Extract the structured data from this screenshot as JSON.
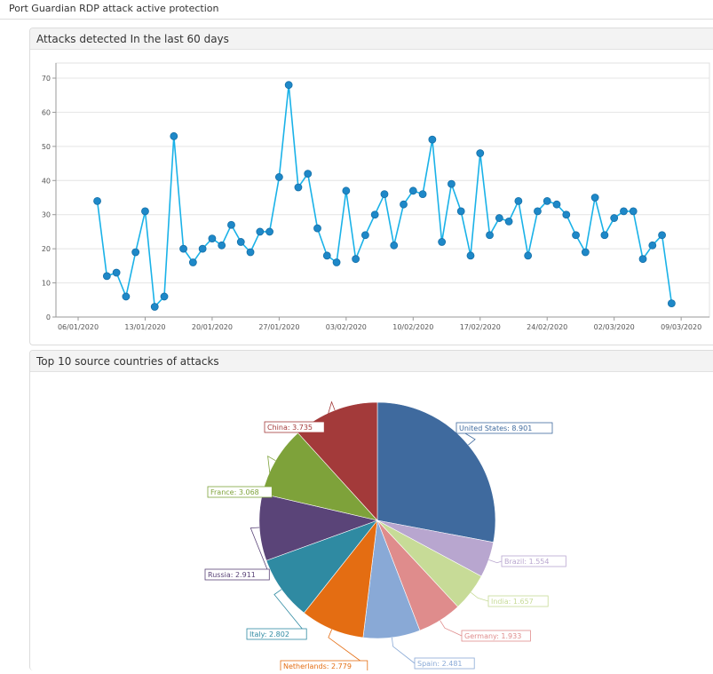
{
  "page": {
    "title": "Port Guardian RDP attack active protection"
  },
  "colors": {
    "line": "#1ab2e8",
    "marker": "#1e88c8",
    "grid": "#e4e4e4",
    "axis": "#999999"
  },
  "line_panel": {
    "title": "Attacks detected In the last 60 days"
  },
  "pie_panel": {
    "title": "Top 10 source countries of attacks"
  },
  "chart_data": [
    {
      "type": "line",
      "title": "",
      "xlabel": "",
      "ylabel": "",
      "ylim": [
        0,
        70
      ],
      "yticks": [
        "0",
        "10",
        "20",
        "30",
        "40",
        "50",
        "60",
        "70"
      ],
      "xtick_labels": [
        "06/01/2020",
        "13/01/2020",
        "20/01/2020",
        "27/01/2020",
        "03/02/2020",
        "10/02/2020",
        "17/02/2020",
        "24/02/2020",
        "02/03/2020",
        "09/03/2020"
      ],
      "grid": true,
      "legend": "none",
      "series": [
        {
          "x": [
            "08/01/2020",
            "09/01/2020",
            "10/01/2020",
            "11/01/2020",
            "12/01/2020",
            "13/01/2020",
            "14/01/2020",
            "15/01/2020",
            "16/01/2020",
            "17/01/2020",
            "18/01/2020",
            "19/01/2020",
            "20/01/2020",
            "21/01/2020",
            "22/01/2020",
            "23/01/2020",
            "24/01/2020",
            "25/01/2020",
            "26/01/2020",
            "27/01/2020",
            "28/01/2020",
            "29/01/2020",
            "30/01/2020",
            "31/01/2020",
            "01/02/2020",
            "02/02/2020",
            "03/02/2020",
            "04/02/2020",
            "05/02/2020",
            "06/02/2020",
            "07/02/2020",
            "08/02/2020",
            "09/02/2020",
            "10/02/2020",
            "11/02/2020",
            "12/02/2020",
            "13/02/2020",
            "14/02/2020",
            "15/02/2020",
            "16/02/2020",
            "17/02/2020",
            "18/02/2020",
            "19/02/2020",
            "20/02/2020",
            "21/02/2020",
            "22/02/2020",
            "23/02/2020",
            "24/02/2020",
            "25/02/2020",
            "26/02/2020",
            "27/02/2020",
            "28/02/2020",
            "29/02/2020",
            "01/03/2020",
            "02/03/2020",
            "03/03/2020",
            "04/03/2020",
            "05/03/2020",
            "06/03/2020",
            "07/03/2020",
            "08/03/2020"
          ],
          "values": [
            34,
            12,
            13,
            6,
            19,
            31,
            3,
            6,
            53,
            20,
            16,
            20,
            23,
            21,
            27,
            22,
            19,
            25,
            25,
            41,
            68,
            38,
            42,
            26,
            18,
            16,
            37,
            17,
            24,
            30,
            36,
            21,
            33,
            37,
            36,
            52,
            22,
            39,
            31,
            18,
            48,
            24,
            29,
            28,
            34,
            18,
            31,
            34,
            33,
            30,
            24,
            19,
            35,
            24,
            29,
            31,
            31,
            17,
            21,
            24,
            4
          ]
        }
      ]
    },
    {
      "type": "pie",
      "title": "",
      "legend": "none",
      "slices": [
        {
          "label": "United States: 8.901",
          "value": 8.901,
          "color": "#3f6a9e"
        },
        {
          "label": "Brazil: 1.554",
          "value": 1.554,
          "color": "#b8a6cf"
        },
        {
          "label": "India: 1.657",
          "value": 1.657,
          "color": "#c7db97"
        },
        {
          "label": "Germany: 1.933",
          "value": 1.933,
          "color": "#df8c8c"
        },
        {
          "label": "Spain: 2.481",
          "value": 2.481,
          "color": "#89a9d6"
        },
        {
          "label": "Netherlands: 2.779",
          "value": 2.779,
          "color": "#e46d12"
        },
        {
          "label": "Italy: 2.802",
          "value": 2.802,
          "color": "#2f8aa2"
        },
        {
          "label": "Russia: 2.911",
          "value": 2.911,
          "color": "#5a4478"
        },
        {
          "label": "France: 3.068",
          "value": 3.068,
          "color": "#7ea23a"
        },
        {
          "label": "China: 3.735",
          "value": 3.735,
          "color": "#a33a3a"
        }
      ]
    }
  ]
}
